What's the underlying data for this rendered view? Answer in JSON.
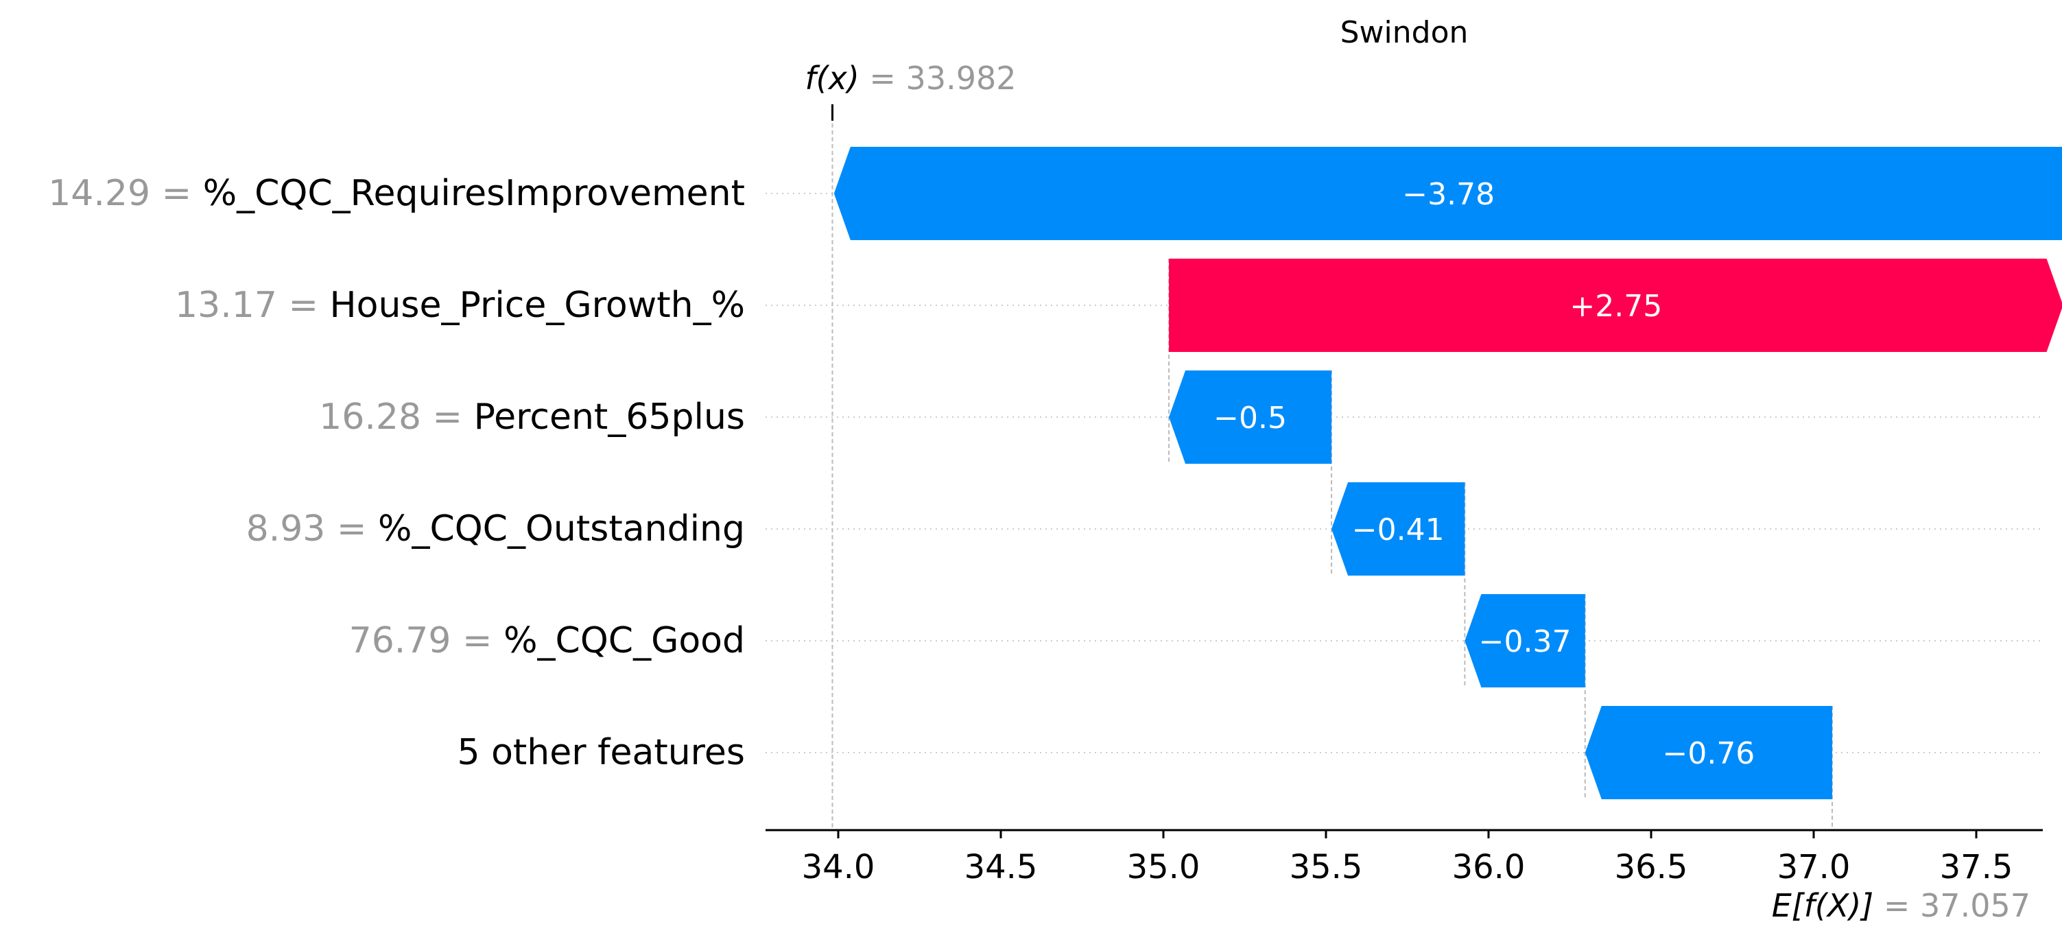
{
  "chart_data": {
    "type": "waterfall",
    "title": "Swindon",
    "fx_label": "f(x)",
    "fx_value_text": "= 33.982",
    "fx_value": 33.982,
    "efx_label": "E[f(X)]",
    "efx_value_text": "= 37.057",
    "base_value": 37.057,
    "xlim": [
      33.75,
      37.78
    ],
    "xticks": [
      34.0,
      34.5,
      35.0,
      35.5,
      36.0,
      36.5,
      37.0,
      37.5
    ],
    "xtick_labels": [
      "34.0",
      "34.5",
      "35.0",
      "35.5",
      "36.0",
      "36.5",
      "37.0",
      "37.5"
    ],
    "features": [
      {
        "value": "14.29 =",
        "name": "%_CQC_RequiresImprovement",
        "contribution": -3.78,
        "label": "−3.78"
      },
      {
        "value": "13.17 =",
        "name": "House_Price_Growth_%",
        "contribution": 2.75,
        "label": "+2.75"
      },
      {
        "value": "16.28 =",
        "name": "Percent_65plus",
        "contribution": -0.5,
        "label": "−0.5"
      },
      {
        "value": "8.93 =",
        "name": "%_CQC_Outstanding",
        "contribution": -0.41,
        "label": "−0.41"
      },
      {
        "value": "76.79 =",
        "name": "%_CQC_Good",
        "contribution": -0.37,
        "label": "−0.37"
      },
      {
        "value": "",
        "name": "5 other features",
        "contribution": -0.76,
        "label": "−0.76"
      }
    ],
    "colors": {
      "positive": "#ff0051",
      "negative": "#008bfb",
      "value_text": "#999999",
      "label_text": "#000000"
    }
  }
}
